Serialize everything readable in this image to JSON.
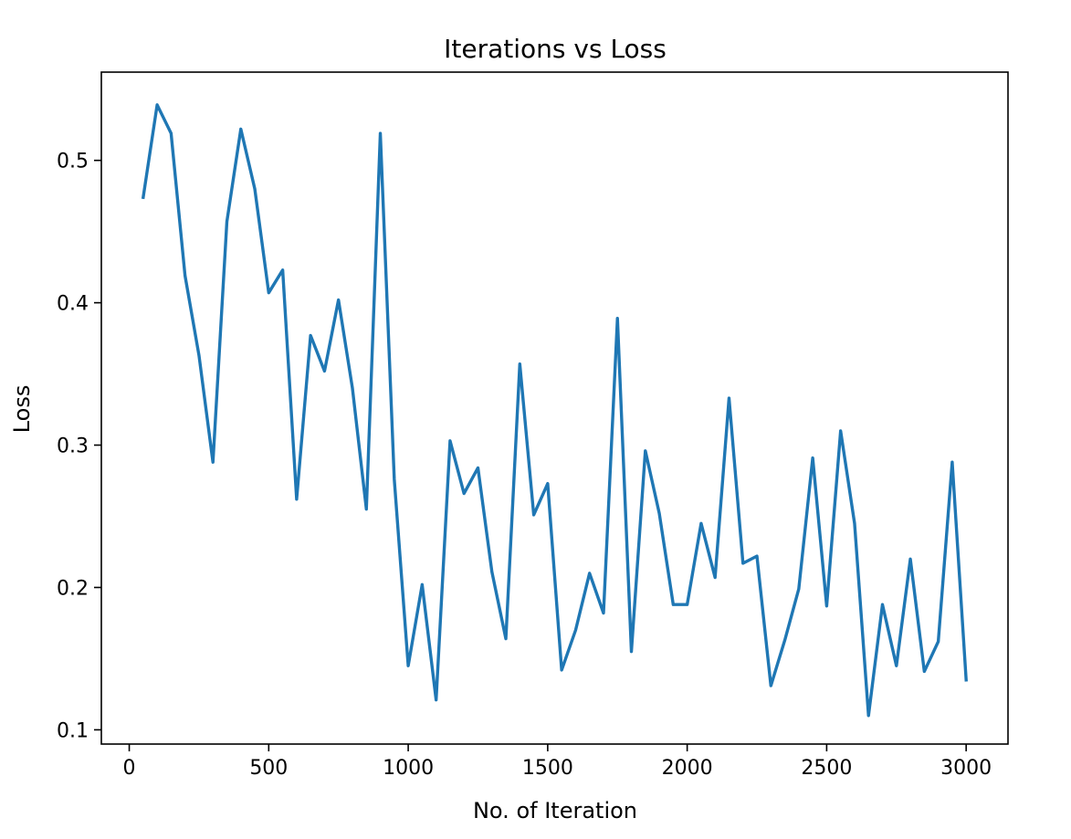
{
  "chart_data": {
    "type": "line",
    "title": "Iterations vs Loss",
    "xlabel": "No. of Iteration",
    "ylabel": "Loss",
    "xlim": [
      -100,
      3150
    ],
    "ylim": [
      0.09,
      0.562
    ],
    "xticks": [
      0,
      500,
      1000,
      1500,
      2000,
      2500,
      3000
    ],
    "xtick_labels": [
      "0",
      "500",
      "1000",
      "1500",
      "2000",
      "2500",
      "3000"
    ],
    "yticks": [
      0.1,
      0.2,
      0.3,
      0.4,
      0.5
    ],
    "ytick_labels": [
      "0.1",
      "0.2",
      "0.3",
      "0.4",
      "0.5"
    ],
    "grid": false,
    "legend": "none",
    "series": [
      {
        "color": "#1f77b4",
        "x": [
          50,
          100,
          150,
          200,
          250,
          300,
          350,
          400,
          450,
          500,
          550,
          600,
          650,
          700,
          750,
          800,
          850,
          900,
          950,
          1000,
          1050,
          1100,
          1150,
          1200,
          1250,
          1300,
          1350,
          1400,
          1450,
          1500,
          1550,
          1600,
          1650,
          1700,
          1750,
          1800,
          1850,
          1900,
          1950,
          2000,
          2050,
          2100,
          2150,
          2200,
          2250,
          2300,
          2350,
          2400,
          2450,
          2500,
          2550,
          2600,
          2650,
          2700,
          2750,
          2800,
          2850,
          2900,
          2950,
          3000
        ],
        "y": [
          0.474,
          0.539,
          0.519,
          0.419,
          0.363,
          0.288,
          0.457,
          0.522,
          0.48,
          0.407,
          0.423,
          0.262,
          0.377,
          0.352,
          0.402,
          0.34,
          0.255,
          0.519,
          0.276,
          0.145,
          0.202,
          0.121,
          0.303,
          0.266,
          0.284,
          0.211,
          0.164,
          0.357,
          0.251,
          0.273,
          0.142,
          0.17,
          0.21,
          0.182,
          0.389,
          0.155,
          0.296,
          0.252,
          0.188,
          0.188,
          0.245,
          0.207,
          0.333,
          0.217,
          0.222,
          0.131,
          0.163,
          0.199,
          0.291,
          0.187,
          0.31,
          0.245,
          0.11,
          0.188,
          0.145,
          0.22,
          0.141,
          0.162,
          0.288,
          0.135
        ]
      }
    ]
  }
}
